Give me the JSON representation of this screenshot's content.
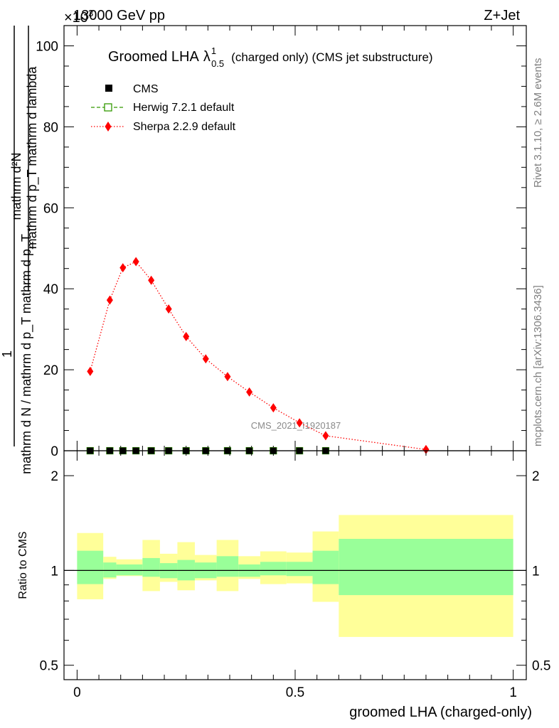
{
  "header": {
    "energy": "13000 GeV pp",
    "process": "Z+Jet",
    "exponent_marker": "×10",
    "exponent_power": "3"
  },
  "plot_title": {
    "main": "Groomed LHA",
    "lambda": "λ",
    "sup": "1",
    "sub": "0.5",
    "suffix": "(charged only) (CMS jet substructure)"
  },
  "side_labels": {
    "rivet": "Rivet 3.1.10, ≥ 2.6M events",
    "mcplots": "mcplots.cern.ch [arXiv:1306.3436]"
  },
  "watermark": "CMS_2021_I1920187",
  "y_axis_label": {
    "numerator_line1": "mathrm d²N",
    "numerator_line2": "mathrm d p_T mathrm d lambda",
    "fraction_one": "1",
    "denominator": "mathrm d N / mathrm d p_T mathrm d p_T"
  },
  "legend": [
    {
      "name": "CMS",
      "marker": "square-filled",
      "color": "#000000"
    },
    {
      "name": "Herwig 7.2.1 default",
      "marker": "square-open",
      "color": "#339900",
      "line": "dashed"
    },
    {
      "name": "Sherpa 2.2.9 default",
      "marker": "diamond",
      "color": "#ff0000",
      "line": "dotted"
    }
  ],
  "ratio_panel": {
    "ylabel": "Ratio to CMS",
    "yticks": [
      "0.5",
      "1",
      "2"
    ],
    "scale": "log",
    "ylim": [
      0.45,
      2.4
    ],
    "bands": [
      {
        "xlo": 0.0,
        "xhi": 0.06,
        "inner": [
          0.905,
          1.155
        ],
        "outer": [
          0.81,
          1.315
        ]
      },
      {
        "xlo": 0.06,
        "xhi": 0.09,
        "inner": [
          0.95,
          1.06
        ],
        "outer": [
          0.94,
          1.105
        ]
      },
      {
        "xlo": 0.09,
        "xhi": 0.15,
        "inner": [
          0.965,
          1.045
        ],
        "outer": [
          0.96,
          1.085
        ]
      },
      {
        "xlo": 0.15,
        "xhi": 0.19,
        "inner": [
          0.955,
          1.095
        ],
        "outer": [
          0.86,
          1.25
        ]
      },
      {
        "xlo": 0.19,
        "xhi": 0.23,
        "inner": [
          0.945,
          1.055
        ],
        "outer": [
          0.92,
          1.13
        ]
      },
      {
        "xlo": 0.23,
        "xhi": 0.27,
        "inner": [
          0.93,
          1.08
        ],
        "outer": [
          0.865,
          1.23
        ]
      },
      {
        "xlo": 0.27,
        "xhi": 0.32,
        "inner": [
          0.945,
          1.06
        ],
        "outer": [
          0.93,
          1.12
        ]
      },
      {
        "xlo": 0.32,
        "xhi": 0.37,
        "inner": [
          0.955,
          1.11
        ],
        "outer": [
          0.86,
          1.25
        ]
      },
      {
        "xlo": 0.37,
        "xhi": 0.42,
        "inner": [
          0.955,
          1.045
        ],
        "outer": [
          0.94,
          1.11
        ]
      },
      {
        "xlo": 0.42,
        "xhi": 0.48,
        "inner": [
          0.965,
          1.065
        ],
        "outer": [
          0.905,
          1.15
        ]
      },
      {
        "xlo": 0.48,
        "xhi": 0.54,
        "inner": [
          0.96,
          1.065
        ],
        "outer": [
          0.91,
          1.14
        ]
      },
      {
        "xlo": 0.54,
        "xhi": 0.6,
        "inner": [
          0.905,
          1.155
        ],
        "outer": [
          0.795,
          1.33
        ]
      },
      {
        "xlo": 0.6,
        "xhi": 1.0,
        "inner": [
          0.835,
          1.26
        ],
        "outer": [
          0.615,
          1.5
        ]
      }
    ]
  },
  "chart_data": {
    "type": "line",
    "xlabel": "groomed LHA (charged-only)",
    "xlim": [
      -0.03,
      1.03
    ],
    "xticks": [
      "0",
      "0.5",
      "1"
    ],
    "ylim": [
      0,
      105
    ],
    "yticks": [
      "0",
      "20",
      "40",
      "60",
      "80",
      "100"
    ],
    "y_multiplier_exponent": 3,
    "series": [
      {
        "name": "CMS",
        "x": [
          0.03,
          0.075,
          0.105,
          0.135,
          0.17,
          0.21,
          0.25,
          0.295,
          0.345,
          0.395,
          0.45,
          0.51,
          0.57
        ],
        "y": [
          0,
          0,
          0,
          0,
          0,
          0,
          0,
          0,
          0,
          0,
          0,
          0,
          0
        ]
      },
      {
        "name": "Herwig 7.2.1 default",
        "x": [
          0.03,
          0.075,
          0.105,
          0.135,
          0.17,
          0.21,
          0.25,
          0.295,
          0.345,
          0.395,
          0.45,
          0.51,
          0.57
        ],
        "y": [
          0,
          0,
          0,
          0,
          0,
          0,
          0,
          0,
          0,
          0,
          0,
          0,
          0
        ]
      },
      {
        "name": "Sherpa 2.2.9 default",
        "x": [
          0.03,
          0.075,
          0.105,
          0.135,
          0.17,
          0.21,
          0.25,
          0.295,
          0.345,
          0.395,
          0.45,
          0.51,
          0.57,
          0.8
        ],
        "y": [
          19.6,
          37.2,
          45.2,
          46.7,
          42.1,
          35.0,
          28.2,
          22.7,
          18.3,
          14.5,
          10.6,
          6.9,
          3.7,
          0.3
        ]
      }
    ]
  }
}
